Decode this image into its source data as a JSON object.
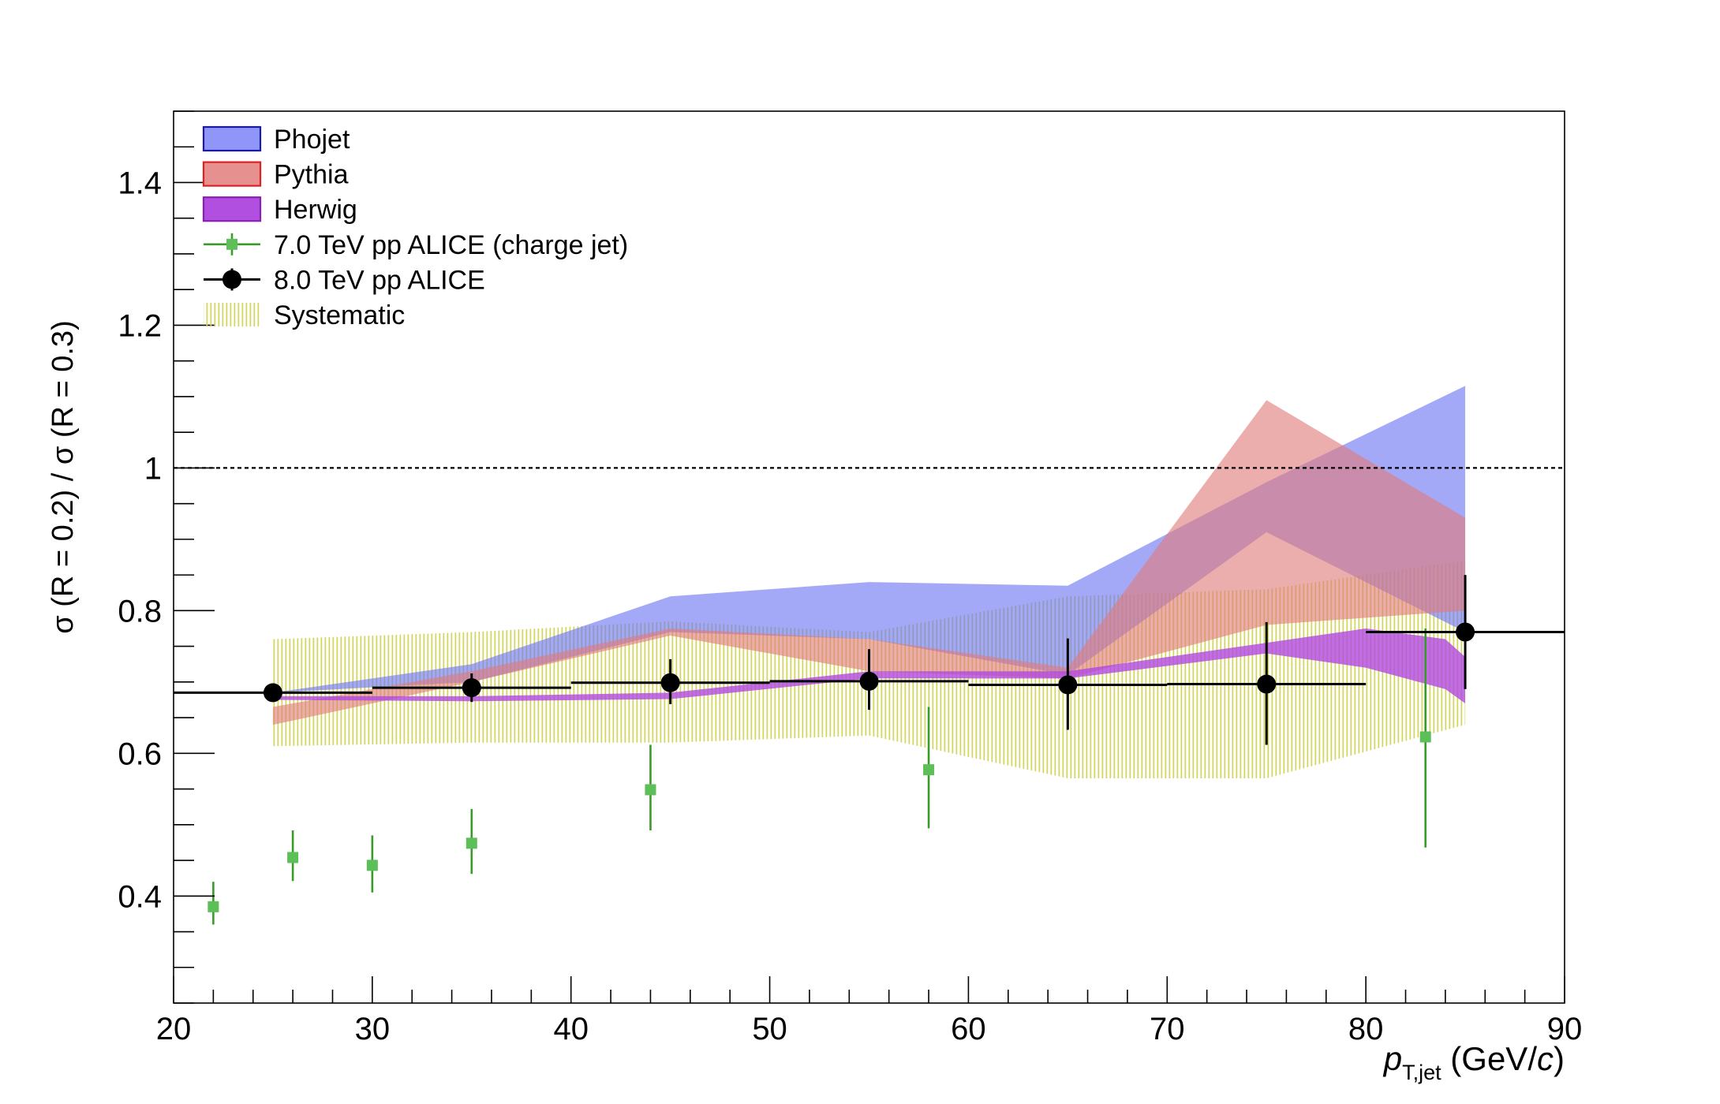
{
  "chart_data": {
    "type": "scatter",
    "xlabel": {
      "italic": "p",
      "sub": "T,jet",
      "unit_pre": " (GeV/",
      "unit_var": "c",
      "unit_post": ")"
    },
    "ylabel": "σ (R = 0.2) / σ (R = 0.3)",
    "xlim": [
      20,
      90
    ],
    "ylim": [
      0.25,
      1.5
    ],
    "x_ticks": [
      20,
      30,
      40,
      50,
      60,
      70,
      80,
      90
    ],
    "y_ticks": [
      0.4,
      0.6,
      0.8,
      1,
      1.2,
      1.4
    ],
    "y_tick_labels": [
      "0.4",
      "0.6",
      "0.8",
      "1",
      "1.2",
      "1.4"
    ],
    "reference_line": {
      "y": 1.0,
      "style": "dotted"
    },
    "legend": {
      "position": "top-left",
      "entries": [
        {
          "label": "Phojet",
          "kind": "band",
          "fill": "#8f96f7",
          "stroke": "#1a1aa6"
        },
        {
          "label": "Pythia",
          "kind": "band",
          "fill": "#e6908f",
          "stroke": "#e02020"
        },
        {
          "label": "Herwig",
          "kind": "band",
          "fill": "#b14fe0",
          "stroke": "#8a1fb5"
        },
        {
          "label": "7.0 TeV pp ALICE (charge jet)",
          "kind": "marker-square",
          "color": "#3a9a2a",
          "fill": "#5cbf58"
        },
        {
          "label": "8.0 TeV pp ALICE",
          "kind": "marker-circle",
          "color": "#000000"
        },
        {
          "label": "Systematic",
          "kind": "hatch",
          "color": "#d8d860"
        }
      ]
    },
    "series": [
      {
        "name": "Systematic",
        "kind": "hatch-band",
        "color": "#d4d45a",
        "x": [
          25,
          35,
          45,
          55,
          65,
          75,
          85
        ],
        "upper": [
          0.76,
          0.77,
          0.785,
          0.77,
          0.82,
          0.83,
          0.87
        ],
        "lower": [
          0.61,
          0.615,
          0.615,
          0.625,
          0.565,
          0.565,
          0.64
        ]
      },
      {
        "name": "Phojet",
        "kind": "band",
        "color": "#6b74f2",
        "opacity": 0.62,
        "x": [
          25,
          35,
          45,
          55,
          65,
          75,
          85
        ],
        "upper": [
          0.685,
          0.725,
          0.82,
          0.84,
          0.835,
          0.98,
          1.115
        ],
        "lower": [
          0.685,
          0.7,
          0.77,
          0.76,
          0.71,
          0.91,
          0.77
        ]
      },
      {
        "name": "Pythia",
        "kind": "band",
        "color": "#e07a7a",
        "opacity": 0.62,
        "x": [
          25,
          35,
          45,
          55,
          65,
          75,
          85
        ],
        "upper": [
          0.665,
          0.715,
          0.775,
          0.76,
          0.72,
          1.095,
          0.93
        ],
        "lower": [
          0.64,
          0.7,
          0.765,
          0.715,
          0.705,
          0.78,
          0.8
        ]
      },
      {
        "name": "Herwig",
        "kind": "band",
        "color": "#b048e0",
        "opacity": 0.8,
        "x": [
          25,
          35,
          45,
          55,
          65,
          75,
          80,
          84,
          85
        ],
        "upper": [
          0.68,
          0.68,
          0.685,
          0.715,
          0.715,
          0.755,
          0.775,
          0.76,
          0.735
        ],
        "lower": [
          0.675,
          0.673,
          0.676,
          0.705,
          0.705,
          0.74,
          0.72,
          0.69,
          0.67
        ]
      },
      {
        "name": "7.0 TeV pp ALICE (charge jet)",
        "kind": "points-square",
        "color": "#3a9a2a",
        "fill": "#5cbf58",
        "x": [
          22,
          26,
          30,
          35,
          44,
          58,
          83
        ],
        "y": [
          0.385,
          0.454,
          0.443,
          0.474,
          0.549,
          0.577,
          0.623
        ],
        "yerr_low": [
          0.025,
          0.033,
          0.038,
          0.043,
          0.057,
          0.082,
          0.155
        ],
        "yerr_high": [
          0.035,
          0.038,
          0.042,
          0.048,
          0.063,
          0.088,
          0.152
        ]
      },
      {
        "name": "8.0 TeV pp ALICE",
        "kind": "points-circle",
        "color": "#000000",
        "x": [
          25,
          35,
          45,
          55,
          65,
          75,
          85
        ],
        "xerr": [
          5,
          5,
          5,
          5,
          5,
          5,
          5
        ],
        "y": [
          0.685,
          0.692,
          0.699,
          0.701,
          0.696,
          0.697,
          0.77
        ],
        "yerr_low": [
          0.01,
          0.02,
          0.03,
          0.04,
          0.063,
          0.085,
          0.08
        ],
        "yerr_high": [
          0.01,
          0.02,
          0.033,
          0.045,
          0.065,
          0.087,
          0.08
        ]
      }
    ]
  }
}
